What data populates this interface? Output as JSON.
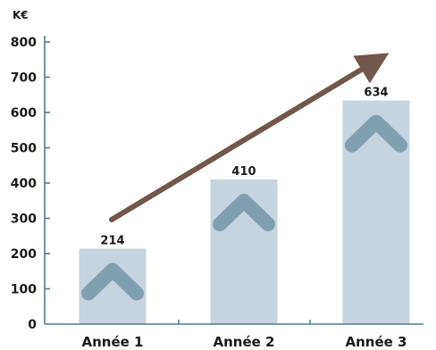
{
  "chart_data": {
    "type": "bar",
    "unit_label": "K€",
    "categories": [
      "Année 1",
      "Année 2",
      "Année 3"
    ],
    "values": [
      214,
      410,
      634
    ],
    "value_labels": [
      "214",
      "410",
      "634"
    ],
    "ylim": [
      0,
      800
    ],
    "yticks": [
      0,
      100,
      200,
      300,
      400,
      500,
      600,
      700,
      800
    ],
    "ytick_labels": [
      "0",
      "100",
      "200",
      "300",
      "400",
      "500",
      "600",
      "700",
      "800"
    ],
    "grid": false,
    "annotations": [
      "upward trend arrow",
      "chevron-up icon inside each bar"
    ],
    "colors": {
      "bar": "#c5d4de",
      "chevron": "#7f9fb2",
      "axis": "#4e7c8e",
      "arrow": "#73574b",
      "text": "#1a1a1a"
    }
  }
}
